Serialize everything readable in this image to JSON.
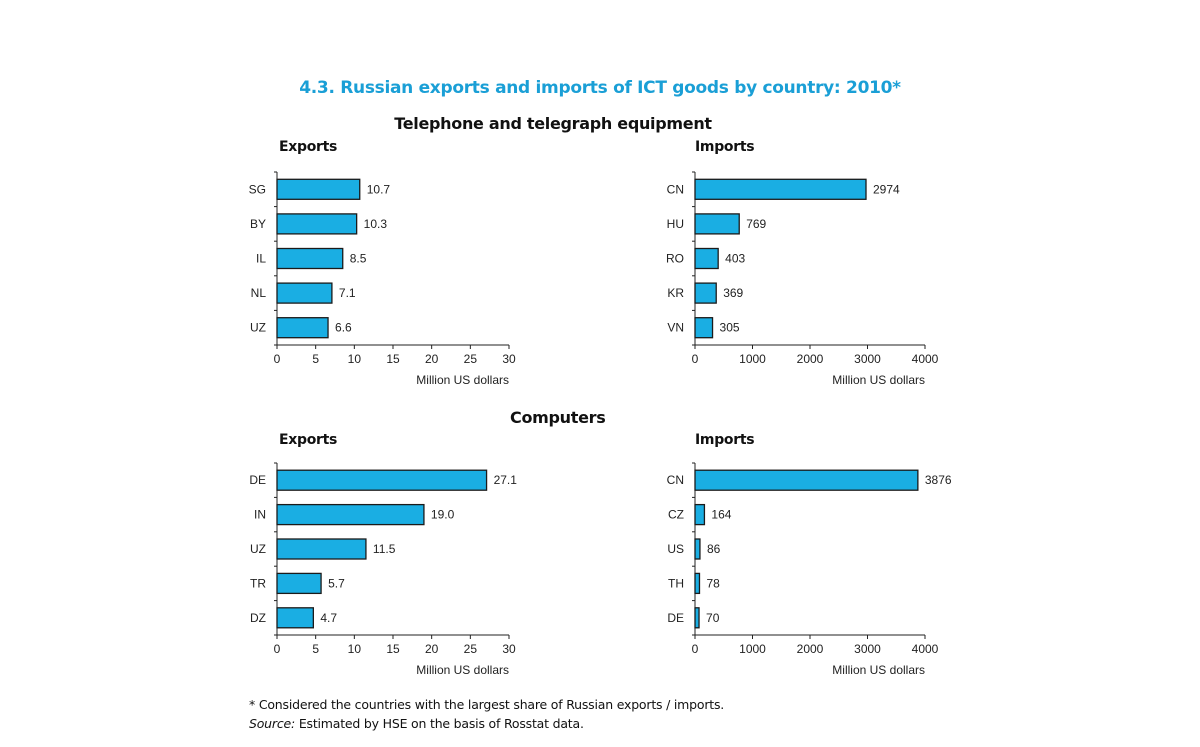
{
  "title": "4.3. Russian exports and imports of ICT goods by country: 2010*",
  "sections": [
    {
      "title": "Telephone and telegraph equipment"
    },
    {
      "title": "Computers"
    }
  ],
  "footnote": "* Considered the countries with the largest share of Russian exports / imports.",
  "source_label": "Source:",
  "source_text": "Estimated by HSE on the basis of Rosstat data.",
  "colors": {
    "bar": "#1aaee3",
    "title": "#1a9fd6"
  },
  "chart_data": [
    {
      "type": "bar",
      "orientation": "horizontal",
      "section": "Telephone and telegraph equipment",
      "title": "Exports",
      "categories": [
        "SG",
        "BY",
        "IL",
        "NL",
        "UZ"
      ],
      "values": [
        10.7,
        10.3,
        8.5,
        7.1,
        6.6
      ],
      "labels": [
        "10.7",
        "10.3",
        "8.5",
        "7.1",
        "6.6"
      ],
      "xlabel": "Million US dollars",
      "xlim": [
        0,
        30
      ],
      "ticks": [
        0,
        5,
        10,
        15,
        20,
        25,
        30
      ]
    },
    {
      "type": "bar",
      "orientation": "horizontal",
      "section": "Telephone and telegraph equipment",
      "title": "Imports",
      "categories": [
        "CN",
        "HU",
        "RO",
        "KR",
        "VN"
      ],
      "values": [
        2974,
        769,
        403,
        369,
        305
      ],
      "labels": [
        "2974",
        "769",
        "403",
        "369",
        "305"
      ],
      "xlabel": "Million US dollars",
      "xlim": [
        0,
        4000
      ],
      "ticks": [
        0,
        1000,
        2000,
        3000,
        4000
      ]
    },
    {
      "type": "bar",
      "orientation": "horizontal",
      "section": "Computers",
      "title": "Exports",
      "categories": [
        "DE",
        "IN",
        "UZ",
        "TR",
        "DZ"
      ],
      "values": [
        27.1,
        19.0,
        11.5,
        5.7,
        4.7
      ],
      "labels": [
        "27.1",
        "19.0",
        "11.5",
        "5.7",
        "4.7"
      ],
      "xlabel": "Million US dollars",
      "xlim": [
        0,
        30
      ],
      "ticks": [
        0,
        5,
        10,
        15,
        20,
        25,
        30
      ]
    },
    {
      "type": "bar",
      "orientation": "horizontal",
      "section": "Computers",
      "title": "Imports",
      "categories": [
        "CN",
        "CZ",
        "US",
        "TH",
        "DE"
      ],
      "values": [
        3876,
        164,
        86,
        78,
        70
      ],
      "labels": [
        "3876",
        "164",
        "86",
        "78",
        "70"
      ],
      "xlabel": "Million US dollars",
      "xlim": [
        0,
        4000
      ],
      "ticks": [
        0,
        1000,
        2000,
        3000,
        4000
      ]
    }
  ]
}
